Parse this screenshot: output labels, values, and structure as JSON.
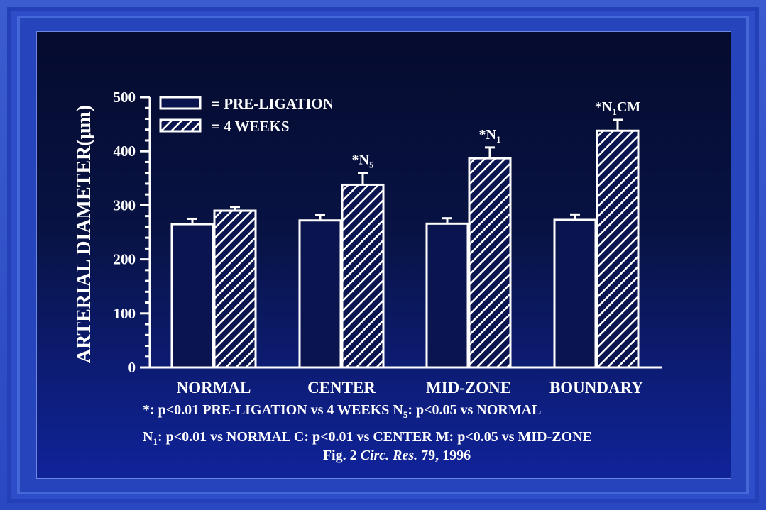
{
  "colors": {
    "background": "#0a1550",
    "bars": "#ffffff",
    "text": "#ffffff"
  },
  "chart_data": {
    "type": "bar",
    "ylabel": "ARTERIAL DIAMETER(μm)",
    "ylim": [
      0,
      500
    ],
    "yticks": [
      0,
      100,
      200,
      300,
      400,
      500
    ],
    "categories": [
      "NORMAL",
      "CENTER",
      "MID-ZONE",
      "BOUNDARY"
    ],
    "series": [
      {
        "name": "PRE-LIGATION",
        "pattern": "hollow",
        "values": [
          265,
          272,
          266,
          273
        ],
        "errors": [
          10,
          10,
          10,
          10
        ]
      },
      {
        "name": "4 WEEKS",
        "pattern": "hatched",
        "values": [
          290,
          338,
          387,
          438
        ],
        "errors": [
          7,
          22,
          20,
          20
        ]
      }
    ],
    "annotations": [
      {
        "category": "CENTER",
        "text": "*N",
        "sub": "5",
        "suffix": ""
      },
      {
        "category": "MID-ZONE",
        "text": "*N",
        "sub": "1",
        "suffix": ""
      },
      {
        "category": "BOUNDARY",
        "text": "*N",
        "sub": "1",
        "suffix": "CM"
      }
    ],
    "legend": {
      "position": "top-left",
      "prefix": "="
    },
    "grid": false
  },
  "footnotes": {
    "line1_a": "*: p<0.01 PRE-LIGATION vs 4 WEEKS   N",
    "line1_sub": "5",
    "line1_b": ": p<0.05 vs NORMAL",
    "line2_a": "N",
    "line2_sub": "1",
    "line2_b": ": p<0.01 vs NORMAL    C: p<0.01 vs CENTER  M: p<0.05 vs MID-ZONE",
    "citation_a": "Fig. 2 ",
    "citation_italic": "Circ. Res.",
    "citation_b": " 79, 1996"
  }
}
